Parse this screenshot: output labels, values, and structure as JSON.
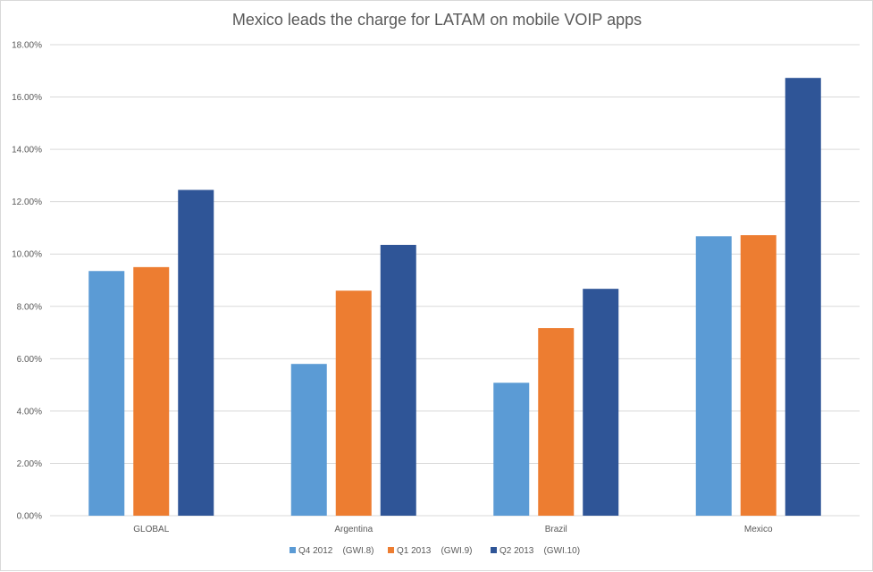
{
  "chart_data": {
    "type": "bar",
    "title": "Mexico leads the charge for LATAM on mobile VOIP apps",
    "xlabel": "",
    "ylabel": "",
    "categories": [
      "GLOBAL",
      "Argentina",
      "Brazil",
      "Mexico"
    ],
    "series": [
      {
        "name": "Q4 2012    (GWI.8)",
        "color": "#5b9bd5",
        "values": [
          9.35,
          5.8,
          5.08,
          10.68
        ]
      },
      {
        "name": "Q1 2013    (GWI.9)",
        "color": "#ed7d31",
        "values": [
          9.5,
          8.6,
          7.17,
          10.72
        ]
      },
      {
        "name": "Q2 2013    (GWI.10)",
        "color": "#2f5597",
        "values": [
          12.45,
          10.35,
          8.67,
          16.73
        ]
      }
    ],
    "ylim": [
      0,
      18
    ],
    "ytick_values": [
      0,
      2,
      4,
      6,
      8,
      10,
      12,
      14,
      16,
      18
    ],
    "ytick_labels": [
      "0.00%",
      "2.00%",
      "4.00%",
      "6.00%",
      "8.00%",
      "10.00%",
      "12.00%",
      "14.00%",
      "16.00%",
      "18.00%"
    ],
    "grid": true,
    "legend_position": "bottom"
  }
}
